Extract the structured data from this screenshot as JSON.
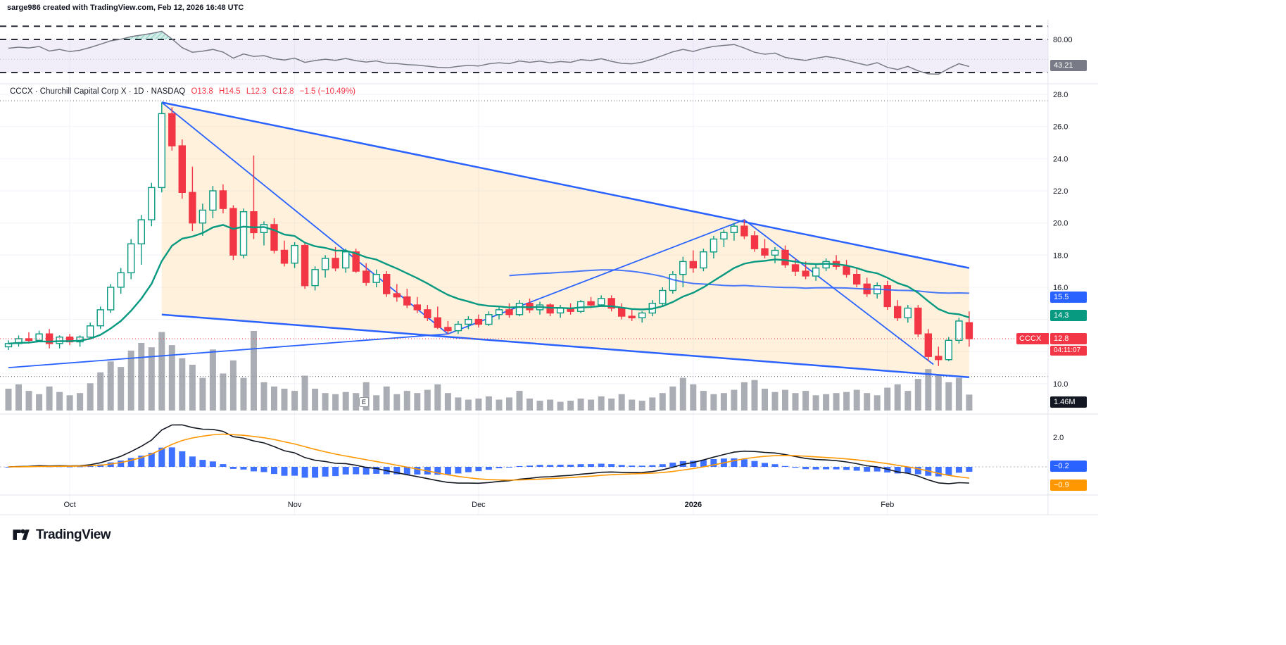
{
  "attribution": "sarge986 created with TradingView.com, Feb 12, 2026 16:48 UTC",
  "legend": {
    "symbol_line": "CCCX · Churchill Capital Corp X · 1D · NASDAQ",
    "open": "O13.8",
    "high": "H14.5",
    "low": "L12.3",
    "close": "C12.8",
    "change": "−1.5 (−10.49%)"
  },
  "axis": {
    "rsi_value": "43.21",
    "rsi_ticks": [
      {
        "label": "80.00",
        "value": 80
      }
    ],
    "price_ticks": [
      {
        "label": "28.0",
        "value": 28
      },
      {
        "label": "26.0",
        "value": 26
      },
      {
        "label": "24.0",
        "value": 24
      },
      {
        "label": "22.0",
        "value": 22
      },
      {
        "label": "20.0",
        "value": 20
      },
      {
        "label": "18.0",
        "value": 18
      },
      {
        "label": "16.0",
        "value": 16
      },
      {
        "label": "10.0",
        "value": 10
      }
    ],
    "ma_blue": "15.5",
    "ma_green": "14.3",
    "symbol_tag": "CCCX",
    "last_price": "12.8",
    "countdown": "04:11:07",
    "volume": "1.46M",
    "macd_ticks": [
      {
        "label": "2.0",
        "value": 2
      }
    ],
    "macd_hist": "−0.2",
    "macd_signal": "−0.9"
  },
  "time_axis": {
    "ticks": [
      {
        "label": "Oct",
        "bar": 6,
        "bold": false
      },
      {
        "label": "Nov",
        "bar": 28,
        "bold": false
      },
      {
        "label": "Dec",
        "bar": 46,
        "bold": false
      },
      {
        "label": "2026",
        "bar": 67,
        "bold": true
      },
      {
        "label": "Feb",
        "bar": 86,
        "bold": false
      }
    ]
  },
  "volume_marker": "E",
  "logo_text": "TradingView",
  "colors": {
    "up": "#089981",
    "down": "#F23645",
    "trendline_blue": "#2962FF",
    "macd_hist": "#2962FF",
    "macd_line": "#131722",
    "macd_signal": "#FF9800",
    "volume_bar": "#9598a1",
    "rsi_line": "#787b86",
    "wedge_fill": "rgba(255,167,38,0.16)",
    "rsi_band_fill": "rgba(126,87,194,0.10)",
    "grid": "#f0f3fa",
    "separator": "#e0e3eb"
  },
  "chart_data": {
    "type": "candlestick",
    "symbol": "CCCX",
    "company": "Churchill Capital Corp X",
    "interval": "1D",
    "exchange": "NASDAQ",
    "last": {
      "open": 13.8,
      "high": 14.5,
      "low": 12.3,
      "close": 12.8,
      "change": -1.5,
      "change_pct": -10.49
    },
    "price_axis": {
      "min": 10,
      "max": 28,
      "gridlines": [
        10,
        12,
        14,
        16,
        18,
        20,
        22,
        24,
        26,
        28
      ]
    },
    "candles": [
      [
        12.3,
        12.7,
        12.1,
        12.5
      ],
      [
        12.5,
        13.0,
        12.3,
        12.8
      ],
      [
        12.8,
        13.2,
        12.5,
        12.7
      ],
      [
        12.7,
        13.3,
        12.6,
        13.1
      ],
      [
        13.1,
        13.4,
        12.2,
        12.5
      ],
      [
        12.5,
        13.0,
        12.2,
        12.9
      ],
      [
        12.9,
        13.1,
        12.4,
        12.6
      ],
      [
        12.6,
        13.0,
        12.3,
        12.9
      ],
      [
        12.9,
        13.8,
        12.8,
        13.6
      ],
      [
        13.6,
        14.8,
        13.4,
        14.6
      ],
      [
        14.6,
        16.2,
        14.4,
        16.0
      ],
      [
        16.0,
        17.2,
        15.6,
        16.9
      ],
      [
        16.9,
        19.0,
        16.5,
        18.7
      ],
      [
        18.7,
        20.5,
        17.4,
        20.2
      ],
      [
        20.2,
        22.5,
        19.8,
        22.2
      ],
      [
        22.2,
        27.5,
        21.9,
        26.8
      ],
      [
        26.8,
        27.2,
        24.5,
        24.8
      ],
      [
        24.8,
        25.2,
        21.5,
        21.9
      ],
      [
        21.9,
        23.5,
        19.5,
        20.0
      ],
      [
        20.0,
        21.2,
        19.2,
        20.8
      ],
      [
        20.8,
        22.3,
        20.3,
        22.0
      ],
      [
        22.0,
        22.4,
        20.6,
        20.9
      ],
      [
        20.9,
        21.1,
        17.7,
        18.0
      ],
      [
        18.0,
        20.9,
        17.8,
        20.7
      ],
      [
        20.7,
        24.2,
        19.0,
        19.4
      ],
      [
        19.4,
        20.1,
        18.6,
        19.9
      ],
      [
        19.9,
        20.3,
        18.1,
        18.3
      ],
      [
        18.3,
        18.9,
        17.3,
        17.5
      ],
      [
        17.5,
        18.8,
        17.2,
        18.6
      ],
      [
        18.6,
        18.8,
        15.9,
        16.1
      ],
      [
        16.1,
        17.3,
        15.8,
        17.1
      ],
      [
        17.1,
        18.0,
        16.6,
        17.8
      ],
      [
        17.8,
        18.5,
        17.0,
        17.2
      ],
      [
        17.2,
        18.4,
        16.9,
        18.2
      ],
      [
        18.2,
        18.4,
        16.9,
        17.0
      ],
      [
        17.0,
        17.5,
        16.1,
        16.3
      ],
      [
        16.3,
        17.1,
        16.0,
        16.8
      ],
      [
        16.8,
        17.0,
        15.4,
        15.6
      ],
      [
        15.6,
        16.2,
        15.1,
        15.4
      ],
      [
        15.4,
        15.9,
        14.7,
        14.9
      ],
      [
        14.9,
        15.4,
        14.4,
        14.6
      ],
      [
        14.6,
        14.9,
        13.9,
        14.1
      ],
      [
        14.1,
        14.8,
        13.4,
        13.5
      ],
      [
        13.5,
        13.9,
        13.1,
        13.3
      ],
      [
        13.3,
        13.9,
        13.1,
        13.7
      ],
      [
        13.7,
        14.2,
        13.4,
        14.0
      ],
      [
        14.0,
        14.3,
        13.5,
        13.7
      ],
      [
        13.7,
        14.5,
        13.6,
        14.3
      ],
      [
        14.3,
        14.8,
        14.0,
        14.6
      ],
      [
        14.6,
        15.0,
        14.1,
        14.3
      ],
      [
        14.3,
        15.2,
        14.2,
        15.0
      ],
      [
        15.0,
        15.3,
        14.4,
        14.6
      ],
      [
        14.6,
        15.1,
        14.3,
        14.9
      ],
      [
        14.9,
        15.0,
        14.2,
        14.4
      ],
      [
        14.4,
        14.9,
        14.1,
        14.7
      ],
      [
        14.7,
        15.0,
        14.3,
        14.5
      ],
      [
        14.5,
        15.2,
        14.4,
        15.1
      ],
      [
        15.1,
        15.4,
        14.7,
        14.9
      ],
      [
        14.9,
        15.5,
        14.8,
        15.3
      ],
      [
        15.3,
        15.5,
        14.5,
        14.7
      ],
      [
        14.7,
        15.0,
        14.0,
        14.2
      ],
      [
        14.2,
        14.6,
        13.9,
        14.1
      ],
      [
        14.1,
        14.5,
        13.8,
        14.4
      ],
      [
        14.4,
        15.2,
        14.2,
        15.0
      ],
      [
        15.0,
        16.0,
        14.8,
        15.8
      ],
      [
        15.8,
        17.0,
        15.6,
        16.8
      ],
      [
        16.8,
        17.9,
        16.0,
        17.6
      ],
      [
        17.6,
        18.3,
        16.9,
        17.2
      ],
      [
        17.2,
        18.4,
        17.0,
        18.2
      ],
      [
        18.2,
        19.2,
        17.8,
        19.0
      ],
      [
        19.0,
        19.6,
        18.5,
        19.4
      ],
      [
        19.4,
        20.0,
        18.9,
        19.8
      ],
      [
        19.8,
        20.2,
        19.0,
        19.2
      ],
      [
        19.2,
        19.5,
        18.2,
        18.4
      ],
      [
        18.4,
        19.0,
        17.8,
        18.0
      ],
      [
        18.0,
        18.5,
        17.5,
        18.3
      ],
      [
        18.3,
        18.6,
        17.2,
        17.4
      ],
      [
        17.4,
        17.8,
        16.7,
        17.0
      ],
      [
        17.0,
        17.6,
        16.5,
        16.7
      ],
      [
        16.7,
        17.4,
        16.4,
        17.2
      ],
      [
        17.2,
        17.8,
        17.0,
        17.6
      ],
      [
        17.6,
        18.0,
        17.1,
        17.3
      ],
      [
        17.3,
        17.7,
        16.6,
        16.8
      ],
      [
        16.8,
        17.2,
        16.0,
        16.2
      ],
      [
        16.2,
        16.6,
        15.4,
        15.6
      ],
      [
        15.6,
        16.3,
        15.3,
        16.1
      ],
      [
        16.1,
        16.4,
        14.6,
        14.8
      ],
      [
        14.8,
        15.2,
        13.9,
        14.1
      ],
      [
        14.1,
        14.9,
        13.8,
        14.7
      ],
      [
        14.7,
        14.9,
        12.9,
        13.1
      ],
      [
        13.1,
        13.4,
        11.4,
        11.7
      ],
      [
        11.7,
        12.3,
        11.1,
        11.5
      ],
      [
        11.5,
        12.9,
        11.4,
        12.7
      ],
      [
        12.7,
        14.1,
        12.5,
        13.9
      ],
      [
        13.8,
        14.5,
        12.3,
        12.8
      ]
    ],
    "volume_millions": [
      2.0,
      2.4,
      1.8,
      1.5,
      2.2,
      1.7,
      1.4,
      1.6,
      2.5,
      3.5,
      4.5,
      4.0,
      5.5,
      6.2,
      5.8,
      7.2,
      6.0,
      4.8,
      4.2,
      3.0,
      5.6,
      3.4,
      4.6,
      3.0,
      7.3,
      2.6,
      2.2,
      2.0,
      1.8,
      3.2,
      2.0,
      1.6,
      1.5,
      1.7,
      1.6,
      2.6,
      1.4,
      2.2,
      1.5,
      1.8,
      1.6,
      1.9,
      2.4,
      1.6,
      1.2,
      1.0,
      1.1,
      1.3,
      1.0,
      1.2,
      1.8,
      1.1,
      0.9,
      1.0,
      0.8,
      0.9,
      1.1,
      1.0,
      1.3,
      1.1,
      1.5,
      1.0,
      0.9,
      1.2,
      1.6,
      2.2,
      3.0,
      2.4,
      1.8,
      1.5,
      1.6,
      1.9,
      2.6,
      2.8,
      2.0,
      1.7,
      1.9,
      1.6,
      1.8,
      1.4,
      1.5,
      1.6,
      1.7,
      1.9,
      1.6,
      1.4,
      2.1,
      2.4,
      1.8,
      2.9,
      3.8,
      3.2,
      2.6,
      3.0,
      1.46
    ],
    "indicators": {
      "rsi": {
        "length": 14,
        "levels": [
          100,
          80,
          30
        ],
        "mid": 50,
        "band": [
          80,
          30
        ],
        "current": 43.21
      },
      "ema_fast": {
        "period": 14,
        "current": 14.3
      },
      "sma_slow": {
        "period": 50,
        "current": 15.5
      },
      "macd": {
        "fast": 12,
        "slow": 26,
        "signal": 9,
        "current_hist": -0.2,
        "current_signal": -0.9
      }
    },
    "drawings": {
      "wedge_upper": [
        [
          15,
          27.5
        ],
        [
          94,
          17.2
        ]
      ],
      "wedge_lower": [
        [
          15,
          14.3
        ],
        [
          94,
          10.4
        ]
      ],
      "zigzag": [
        [
          15,
          27.5
        ],
        [
          43,
          13.1
        ],
        [
          72,
          20.2
        ],
        [
          90.5,
          11.2
        ]
      ],
      "base_line": [
        [
          0,
          11.0
        ],
        [
          43,
          13.1
        ]
      ],
      "ref_high": 27.6,
      "ref_low": 10.45,
      "last_price_line": 12.8
    }
  }
}
